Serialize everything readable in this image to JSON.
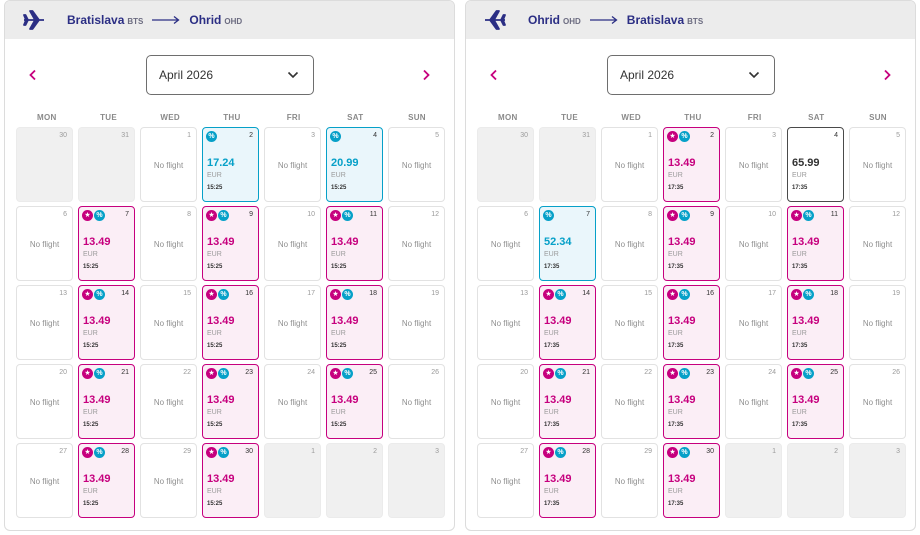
{
  "colors": {
    "brand": "#c6007e",
    "accent": "#06a0c8",
    "navy": "#2b2e84"
  },
  "weekdays": [
    "MON",
    "TUE",
    "WED",
    "THU",
    "FRI",
    "SAT",
    "SUN"
  ],
  "panels": [
    {
      "route": {
        "from_city": "Bratislava",
        "from_code": "BTS",
        "to_city": "Ohrid",
        "to_code": "OHD"
      },
      "month": "April 2026",
      "no_flight_label": "No flight",
      "days": [
        {
          "day": "30",
          "state": "outside"
        },
        {
          "day": "31",
          "state": "outside"
        },
        {
          "day": "1",
          "state": "none"
        },
        {
          "day": "2",
          "state": "blue",
          "price": "17.24",
          "currency": "EUR",
          "time": "15:25",
          "badges": [
            "pct"
          ]
        },
        {
          "day": "3",
          "state": "none"
        },
        {
          "day": "4",
          "state": "blue",
          "price": "20.99",
          "currency": "EUR",
          "time": "15:25",
          "badges": [
            "pct"
          ]
        },
        {
          "day": "5",
          "state": "none"
        },
        {
          "day": "6",
          "state": "none"
        },
        {
          "day": "7",
          "state": "pink",
          "price": "13.49",
          "currency": "EUR",
          "time": "15:25",
          "badges": [
            "star",
            "pct"
          ]
        },
        {
          "day": "8",
          "state": "none"
        },
        {
          "day": "9",
          "state": "pink",
          "price": "13.49",
          "currency": "EUR",
          "time": "15:25",
          "badges": [
            "star",
            "pct"
          ]
        },
        {
          "day": "10",
          "state": "none"
        },
        {
          "day": "11",
          "state": "pink",
          "price": "13.49",
          "currency": "EUR",
          "time": "15:25",
          "badges": [
            "star",
            "pct"
          ]
        },
        {
          "day": "12",
          "state": "none"
        },
        {
          "day": "13",
          "state": "none"
        },
        {
          "day": "14",
          "state": "pink",
          "price": "13.49",
          "currency": "EUR",
          "time": "15:25",
          "badges": [
            "star",
            "pct"
          ]
        },
        {
          "day": "15",
          "state": "none"
        },
        {
          "day": "16",
          "state": "pink",
          "price": "13.49",
          "currency": "EUR",
          "time": "15:25",
          "badges": [
            "star",
            "pct"
          ]
        },
        {
          "day": "17",
          "state": "none"
        },
        {
          "day": "18",
          "state": "pink",
          "price": "13.49",
          "currency": "EUR",
          "time": "15:25",
          "badges": [
            "star",
            "pct"
          ]
        },
        {
          "day": "19",
          "state": "none"
        },
        {
          "day": "20",
          "state": "none"
        },
        {
          "day": "21",
          "state": "pink",
          "price": "13.49",
          "currency": "EUR",
          "time": "15:25",
          "badges": [
            "star",
            "pct"
          ]
        },
        {
          "day": "22",
          "state": "none"
        },
        {
          "day": "23",
          "state": "pink",
          "price": "13.49",
          "currency": "EUR",
          "time": "15:25",
          "badges": [
            "star",
            "pct"
          ]
        },
        {
          "day": "24",
          "state": "none"
        },
        {
          "day": "25",
          "state": "pink",
          "price": "13.49",
          "currency": "EUR",
          "time": "15:25",
          "badges": [
            "star",
            "pct"
          ]
        },
        {
          "day": "26",
          "state": "none"
        },
        {
          "day": "27",
          "state": "none"
        },
        {
          "day": "28",
          "state": "pink",
          "price": "13.49",
          "currency": "EUR",
          "time": "15:25",
          "badges": [
            "star",
            "pct"
          ]
        },
        {
          "day": "29",
          "state": "none"
        },
        {
          "day": "30",
          "state": "pink",
          "price": "13.49",
          "currency": "EUR",
          "time": "15:25",
          "badges": [
            "star",
            "pct"
          ]
        },
        {
          "day": "1",
          "state": "outside"
        },
        {
          "day": "2",
          "state": "outside"
        },
        {
          "day": "3",
          "state": "outside"
        }
      ]
    },
    {
      "route": {
        "from_city": "Ohrid",
        "from_code": "OHD",
        "to_city": "Bratislava",
        "to_code": "BTS"
      },
      "month": "April 2026",
      "no_flight_label": "No flight",
      "days": [
        {
          "day": "30",
          "state": "outside"
        },
        {
          "day": "31",
          "state": "outside"
        },
        {
          "day": "1",
          "state": "none"
        },
        {
          "day": "2",
          "state": "pink",
          "price": "13.49",
          "currency": "EUR",
          "time": "17:35",
          "badges": [
            "star",
            "pct"
          ]
        },
        {
          "day": "3",
          "state": "none"
        },
        {
          "day": "4",
          "state": "plain",
          "price": "65.99",
          "currency": "EUR",
          "time": "17:35",
          "badges": []
        },
        {
          "day": "5",
          "state": "none"
        },
        {
          "day": "6",
          "state": "none"
        },
        {
          "day": "7",
          "state": "blue",
          "price": "52.34",
          "currency": "EUR",
          "time": "17:35",
          "badges": [
            "pct"
          ]
        },
        {
          "day": "8",
          "state": "none"
        },
        {
          "day": "9",
          "state": "pink",
          "price": "13.49",
          "currency": "EUR",
          "time": "17:35",
          "badges": [
            "star",
            "pct"
          ]
        },
        {
          "day": "10",
          "state": "none"
        },
        {
          "day": "11",
          "state": "pink",
          "price": "13.49",
          "currency": "EUR",
          "time": "17:35",
          "badges": [
            "star",
            "pct"
          ]
        },
        {
          "day": "12",
          "state": "none"
        },
        {
          "day": "13",
          "state": "none"
        },
        {
          "day": "14",
          "state": "pink",
          "price": "13.49",
          "currency": "EUR",
          "time": "17:35",
          "badges": [
            "star",
            "pct"
          ]
        },
        {
          "day": "15",
          "state": "none"
        },
        {
          "day": "16",
          "state": "pink",
          "price": "13.49",
          "currency": "EUR",
          "time": "17:35",
          "badges": [
            "star",
            "pct"
          ]
        },
        {
          "day": "17",
          "state": "none"
        },
        {
          "day": "18",
          "state": "pink",
          "price": "13.49",
          "currency": "EUR",
          "time": "17:35",
          "badges": [
            "star",
            "pct"
          ]
        },
        {
          "day": "19",
          "state": "none"
        },
        {
          "day": "20",
          "state": "none"
        },
        {
          "day": "21",
          "state": "pink",
          "price": "13.49",
          "currency": "EUR",
          "time": "17:35",
          "badges": [
            "star",
            "pct"
          ]
        },
        {
          "day": "22",
          "state": "none"
        },
        {
          "day": "23",
          "state": "pink",
          "price": "13.49",
          "currency": "EUR",
          "time": "17:35",
          "badges": [
            "star",
            "pct"
          ]
        },
        {
          "day": "24",
          "state": "none"
        },
        {
          "day": "25",
          "state": "pink",
          "price": "13.49",
          "currency": "EUR",
          "time": "17:35",
          "badges": [
            "star",
            "pct"
          ]
        },
        {
          "day": "26",
          "state": "none"
        },
        {
          "day": "27",
          "state": "none"
        },
        {
          "day": "28",
          "state": "pink",
          "price": "13.49",
          "currency": "EUR",
          "time": "17:35",
          "badges": [
            "star",
            "pct"
          ]
        },
        {
          "day": "29",
          "state": "none"
        },
        {
          "day": "30",
          "state": "pink",
          "price": "13.49",
          "currency": "EUR",
          "time": "17:35",
          "badges": [
            "star",
            "pct"
          ]
        },
        {
          "day": "1",
          "state": "outside"
        },
        {
          "day": "2",
          "state": "outside"
        },
        {
          "day": "3",
          "state": "outside"
        }
      ]
    }
  ]
}
